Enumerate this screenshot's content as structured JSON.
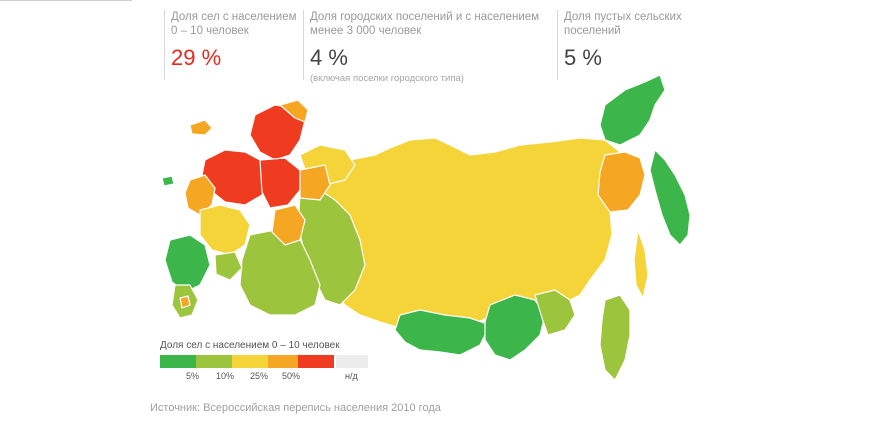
{
  "stats": [
    {
      "label_line1": "Доля сел с населением",
      "label_line2": "0 – 10 человек",
      "value": "29 %",
      "note": ""
    },
    {
      "label_line1": "Доля городских поселений и с населением",
      "label_line2": "менее 3 000 человек",
      "value": "4 %",
      "note": "(включая поселки городского типа)"
    },
    {
      "label_line1": "Доля пустых сельских",
      "label_line2": "поселений",
      "value": "5 %",
      "note": ""
    }
  ],
  "legend": {
    "title": "Доля сел с населением 0 – 10 человек",
    "colors": [
      "#3cb64a",
      "#9cc43c",
      "#f5d43a",
      "#f5a623",
      "#ef3b1f",
      "#ececec"
    ],
    "ticks": [
      "5%",
      "10%",
      "25%",
      "50%",
      "н/д"
    ]
  },
  "source": "Источник: Всероссийская перепись населения 2010 года",
  "map": {
    "colors": {
      "green": "#3cb64a",
      "lime": "#9cc43c",
      "yellow": "#f5d43a",
      "orange": "#f5a623",
      "red": "#ef3b1f",
      "border": "#ffffff"
    }
  }
}
